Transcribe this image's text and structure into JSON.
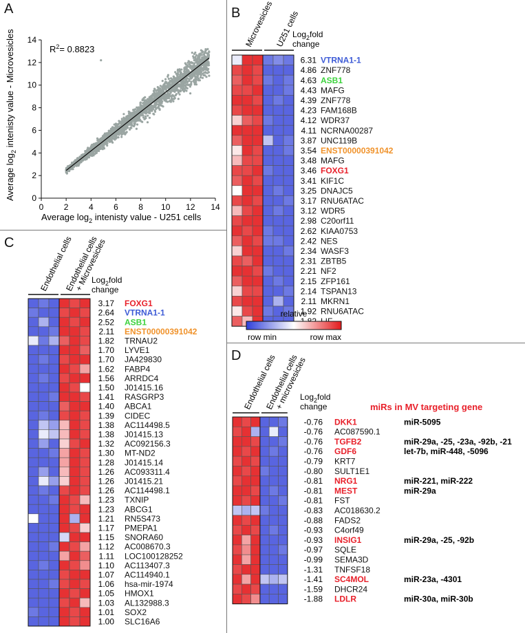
{
  "colors": {
    "red": "#e8202a",
    "blue": "#3d5bd6",
    "green": "#3cd23c",
    "orange": "#f0922a",
    "scatter": "#9aa5a2",
    "black": "#111111"
  },
  "panelA": {
    "letter": "A",
    "xlabel_pre": "Average log",
    "xlabel_sub": "2",
    "xlabel_post": " intenisty value - U251 cells",
    "ylabel_pre": "Average log",
    "ylabel_sub": "2",
    "ylabel_post": " intenisty value - Microvesicles",
    "r2": "R",
    "r2_sup": "2",
    "r2_val": "= 0.8823",
    "chart_data": {
      "type": "scatter",
      "xlim": [
        0,
        14
      ],
      "ylim": [
        0,
        14
      ],
      "xticks": [
        "0",
        "2",
        "4",
        "6",
        "8",
        "10",
        "12",
        "14"
      ],
      "yticks": [
        "0",
        "2",
        "4",
        "6",
        "8",
        "10",
        "12",
        "14"
      ],
      "fit_line": [
        [
          2.0,
          2.45
        ],
        [
          13.5,
          12.4
        ]
      ],
      "r2": 0.8823
    }
  },
  "panelB": {
    "letter": "B",
    "col1": "Microvesicles",
    "col2": "U251 cells",
    "fc_line1": "Log",
    "fc_sub": "2",
    "fc_line2": "fold",
    "fc_line3": "change",
    "legend_title": "relative",
    "legend_min": "row min",
    "legend_max": "row max",
    "rows": [
      {
        "fc": "6.31",
        "gene": "VTRNA1-1",
        "color": "blue",
        "cells": [
          0.45,
          0.95,
          0.95,
          0.15,
          0.2,
          0.15
        ]
      },
      {
        "fc": "4.86",
        "gene": "ZNF778",
        "color": "black",
        "cells": [
          0.9,
          0.95,
          0.9,
          0.1,
          0.1,
          0.1
        ]
      },
      {
        "fc": "4.63",
        "gene": "ASB1",
        "color": "green",
        "cells": [
          0.85,
          0.95,
          0.9,
          0.15,
          0.1,
          0.15
        ]
      },
      {
        "fc": "4.43",
        "gene": "MAFG",
        "color": "black",
        "cells": [
          0.9,
          0.9,
          0.95,
          0.1,
          0.1,
          0.15
        ]
      },
      {
        "fc": "4.39",
        "gene": "ZNF778",
        "color": "black",
        "cells": [
          0.95,
          0.95,
          0.9,
          0.1,
          0.15,
          0.1
        ]
      },
      {
        "fc": "4.23",
        "gene": "FAM168B",
        "color": "black",
        "cells": [
          0.9,
          0.95,
          0.95,
          0.1,
          0.1,
          0.1
        ]
      },
      {
        "fc": "4.12",
        "gene": "WDR37",
        "color": "black",
        "cells": [
          0.6,
          0.85,
          0.9,
          0.15,
          0.1,
          0.1
        ]
      },
      {
        "fc": "4.11",
        "gene": "NCRNA00287",
        "color": "black",
        "cells": [
          0.95,
          0.95,
          0.95,
          0.1,
          0.1,
          0.1
        ]
      },
      {
        "fc": "3.87",
        "gene": "UNC119B",
        "color": "black",
        "cells": [
          0.85,
          0.95,
          0.95,
          0.35,
          0.1,
          0.15
        ]
      },
      {
        "fc": "3.54",
        "gene": "ENST00000391042",
        "color": "orange",
        "cells": [
          0.55,
          0.95,
          0.9,
          0.1,
          0.1,
          0.15
        ]
      },
      {
        "fc": "3.48",
        "gene": "MAFG",
        "color": "black",
        "cells": [
          0.65,
          0.9,
          0.9,
          0.1,
          0.1,
          0.1
        ]
      },
      {
        "fc": "3.46",
        "gene": "FOXG1",
        "color": "red",
        "cells": [
          0.9,
          0.9,
          0.95,
          0.15,
          0.1,
          0.1
        ]
      },
      {
        "fc": "3.41",
        "gene": "KIF1C",
        "color": "black",
        "cells": [
          0.85,
          0.95,
          0.9,
          0.1,
          0.1,
          0.1
        ]
      },
      {
        "fc": "3.25",
        "gene": "DNAJC5",
        "color": "black",
        "cells": [
          0.5,
          0.95,
          0.95,
          0.1,
          0.15,
          0.1
        ]
      },
      {
        "fc": "3.17",
        "gene": "RNU6ATAC",
        "color": "black",
        "cells": [
          0.9,
          0.95,
          0.9,
          0.1,
          0.1,
          0.15
        ]
      },
      {
        "fc": "3.12",
        "gene": "WDR5",
        "color": "black",
        "cells": [
          0.65,
          0.9,
          0.95,
          0.1,
          0.15,
          0.1
        ]
      },
      {
        "fc": "2.98",
        "gene": "C20orf11",
        "color": "black",
        "cells": [
          0.9,
          0.95,
          0.95,
          0.1,
          0.1,
          0.1
        ]
      },
      {
        "fc": "2.62",
        "gene": "KIAA0753",
        "color": "black",
        "cells": [
          0.95,
          0.9,
          0.95,
          0.15,
          0.1,
          0.1
        ]
      },
      {
        "fc": "2.42",
        "gene": "NES",
        "color": "black",
        "cells": [
          0.85,
          0.95,
          0.9,
          0.15,
          0.15,
          0.1
        ]
      },
      {
        "fc": "2.34",
        "gene": "WASF3",
        "color": "black",
        "cells": [
          0.6,
          0.95,
          0.95,
          0.1,
          0.1,
          0.15
        ]
      },
      {
        "fc": "2.31",
        "gene": "ZBTB5",
        "color": "black",
        "cells": [
          0.9,
          0.85,
          0.95,
          0.1,
          0.1,
          0.1
        ]
      },
      {
        "fc": "2.21",
        "gene": "NF2",
        "color": "black",
        "cells": [
          0.95,
          0.95,
          0.9,
          0.15,
          0.1,
          0.1
        ]
      },
      {
        "fc": "2.15",
        "gene": "ZFP161",
        "color": "black",
        "cells": [
          0.85,
          0.95,
          0.95,
          0.1,
          0.15,
          0.1
        ]
      },
      {
        "fc": "2.14",
        "gene": "TSPAN13",
        "color": "black",
        "cells": [
          0.6,
          0.9,
          0.9,
          0.1,
          0.1,
          0.15
        ]
      },
      {
        "fc": "2.11",
        "gene": "MKRN1",
        "color": "black",
        "cells": [
          0.9,
          0.95,
          0.95,
          0.1,
          0.3,
          0.1
        ]
      },
      {
        "fc": "1.92",
        "gene": "RNU6ATAC",
        "color": "black",
        "cells": [
          0.55,
          0.9,
          0.95,
          0.15,
          0.1,
          0.15
        ]
      },
      {
        "fc": "1.82",
        "gene": "LIF",
        "color": "black",
        "cells": [
          0.85,
          0.65,
          0.95,
          0.1,
          0.1,
          0.1
        ]
      }
    ]
  },
  "panelC": {
    "letter": "C",
    "col1": "Endothelial cells",
    "col2a": "Endothelial cells",
    "col2b": "+ Microvesicles",
    "fc_line1": "Log",
    "fc_sub": "2",
    "fc_line2": "fold",
    "fc_line3": "change",
    "rows": [
      {
        "fc": "3.17",
        "gene": "FOXG1",
        "color": "red",
        "cells": [
          0.1,
          0.15,
          0.1,
          0.95,
          0.9,
          0.95
        ]
      },
      {
        "fc": "2.64",
        "gene": "VTRNA1-1",
        "color": "blue",
        "cells": [
          0.15,
          0.1,
          0.1,
          0.9,
          0.95,
          0.9
        ]
      },
      {
        "fc": "2.52",
        "gene": "ASB1",
        "color": "green",
        "cells": [
          0.1,
          0.3,
          0.1,
          0.95,
          0.9,
          0.95
        ]
      },
      {
        "fc": "2.11",
        "gene": "ENST00000391042",
        "color": "orange",
        "cells": [
          0.1,
          0.1,
          0.15,
          0.95,
          0.95,
          0.9
        ]
      },
      {
        "fc": "1.82",
        "gene": "TRNAU2",
        "color": "black",
        "cells": [
          0.45,
          0.15,
          0.3,
          0.85,
          0.95,
          0.9
        ]
      },
      {
        "fc": "1.70",
        "gene": "LYVE1",
        "color": "black",
        "cells": [
          0.1,
          0.1,
          0.1,
          0.95,
          0.95,
          0.85
        ]
      },
      {
        "fc": "1.70",
        "gene": "JA429830",
        "color": "black",
        "cells": [
          0.1,
          0.15,
          0.1,
          0.9,
          0.95,
          0.95
        ]
      },
      {
        "fc": "1.62",
        "gene": "FABP4",
        "color": "black",
        "cells": [
          0.1,
          0.1,
          0.1,
          0.95,
          0.9,
          0.7
        ]
      },
      {
        "fc": "1.56",
        "gene": "ARRDC4",
        "color": "black",
        "cells": [
          0.1,
          0.15,
          0.1,
          0.9,
          0.95,
          0.95
        ]
      },
      {
        "fc": "1.50",
        "gene": "J01415.16",
        "color": "black",
        "cells": [
          0.1,
          0.1,
          0.1,
          0.95,
          0.9,
          0.5
        ]
      },
      {
        "fc": "1.41",
        "gene": "RASGRP3",
        "color": "black",
        "cells": [
          0.1,
          0.1,
          0.15,
          0.95,
          0.95,
          0.9
        ]
      },
      {
        "fc": "1.40",
        "gene": "ABCA1",
        "color": "black",
        "cells": [
          0.1,
          0.1,
          0.1,
          0.85,
          0.95,
          0.95
        ]
      },
      {
        "fc": "1.39",
        "gene": "CIDEC",
        "color": "black",
        "cells": [
          0.1,
          0.15,
          0.1,
          0.9,
          0.95,
          0.9
        ]
      },
      {
        "fc": "1.38",
        "gene": "AC114498.5",
        "color": "black",
        "cells": [
          0.1,
          0.35,
          0.25,
          0.65,
          0.95,
          0.9
        ]
      },
      {
        "fc": "1.38",
        "gene": "J01415.13",
        "color": "black",
        "cells": [
          0.1,
          0.45,
          0.35,
          0.65,
          0.95,
          0.9
        ]
      },
      {
        "fc": "1.32",
        "gene": "AC092156.3",
        "color": "black",
        "cells": [
          0.1,
          0.25,
          0.1,
          0.6,
          0.9,
          0.95
        ]
      },
      {
        "fc": "1.30",
        "gene": "MT-ND2",
        "color": "black",
        "cells": [
          0.1,
          0.1,
          0.15,
          0.7,
          0.95,
          0.9
        ]
      },
      {
        "fc": "1.28",
        "gene": "J01415.14",
        "color": "black",
        "cells": [
          0.1,
          0.1,
          0.1,
          0.7,
          0.95,
          0.9
        ]
      },
      {
        "fc": "1.26",
        "gene": "AC093311.4",
        "color": "black",
        "cells": [
          0.1,
          0.25,
          0.1,
          0.65,
          0.95,
          0.9
        ]
      },
      {
        "fc": "1.26",
        "gene": "J01415.21",
        "color": "black",
        "cells": [
          0.1,
          0.45,
          0.25,
          0.6,
          0.95,
          0.9
        ]
      },
      {
        "fc": "1.26",
        "gene": "AC114498.1",
        "color": "black",
        "cells": [
          0.1,
          0.15,
          0.1,
          0.9,
          0.95,
          0.9
        ]
      },
      {
        "fc": "1.23",
        "gene": "TXNIP",
        "color": "black",
        "cells": [
          0.1,
          0.1,
          0.15,
          0.95,
          0.9,
          0.65
        ]
      },
      {
        "fc": "1.23",
        "gene": "ABCG1",
        "color": "black",
        "cells": [
          0.1,
          0.1,
          0.1,
          0.95,
          0.9,
          0.95
        ]
      },
      {
        "fc": "1.21",
        "gene": "RN5S473",
        "color": "black",
        "cells": [
          0.5,
          0.1,
          0.1,
          0.95,
          0.3,
          0.95
        ]
      },
      {
        "fc": "1.17",
        "gene": "PMEPA1",
        "color": "black",
        "cells": [
          0.1,
          0.1,
          0.1,
          0.95,
          0.9,
          0.6
        ]
      },
      {
        "fc": "1.15",
        "gene": "SNORA60",
        "color": "black",
        "cells": [
          0.1,
          0.1,
          0.1,
          0.4,
          0.95,
          0.95
        ]
      },
      {
        "fc": "1.12",
        "gene": "AC008670.3",
        "color": "black",
        "cells": [
          0.1,
          0.1,
          0.15,
          0.95,
          0.9,
          0.7
        ]
      },
      {
        "fc": "1.11",
        "gene": "LOC100128252",
        "color": "black",
        "cells": [
          0.1,
          0.1,
          0.1,
          0.7,
          0.95,
          0.85
        ]
      },
      {
        "fc": "1.10",
        "gene": "AC113407.3",
        "color": "black",
        "cells": [
          0.1,
          0.15,
          0.1,
          0.95,
          0.9,
          0.75
        ]
      },
      {
        "fc": "1.07",
        "gene": "AC114940.1",
        "color": "black",
        "cells": [
          0.1,
          0.1,
          0.1,
          0.9,
          0.95,
          0.95
        ]
      },
      {
        "fc": "1.06",
        "gene": "hsa-mir-1974",
        "color": "black",
        "cells": [
          0.1,
          0.1,
          0.15,
          0.9,
          0.95,
          0.9
        ]
      },
      {
        "fc": "1.05",
        "gene": "HMOX1",
        "color": "black",
        "cells": [
          0.1,
          0.1,
          0.1,
          0.95,
          0.9,
          0.95
        ]
      },
      {
        "fc": "1.03",
        "gene": "AL132988.3",
        "color": "black",
        "cells": [
          0.1,
          0.1,
          0.1,
          0.9,
          0.95,
          0.65
        ]
      },
      {
        "fc": "1.01",
        "gene": "SOX2",
        "color": "black",
        "cells": [
          0.15,
          0.1,
          0.1,
          0.95,
          0.9,
          0.95
        ]
      },
      {
        "fc": "1.00",
        "gene": "SLC16A6",
        "color": "black",
        "cells": [
          0.1,
          0.1,
          0.1,
          0.95,
          0.9,
          0.95
        ]
      }
    ]
  },
  "panelD": {
    "letter": "D",
    "col1": "Endothelial cells",
    "col2a": "Endothelial cells",
    "col2b": "+ microvesicles",
    "fc_line1": "Log",
    "fc_sub": "2",
    "fc_line2": "fold",
    "fc_line3": "change",
    "mirs_header": "miRs in MV targeting gene",
    "rows": [
      {
        "fc": "-0.76",
        "gene": "DKK1",
        "red": true,
        "mir": "miR-5095",
        "cells": [
          0.95,
          0.9,
          0.95,
          0.1,
          0.1,
          0.15
        ]
      },
      {
        "fc": "-0.76",
        "gene": "AC087590.1",
        "red": false,
        "mir": "",
        "cells": [
          0.9,
          0.95,
          0.3,
          0.1,
          0.45,
          0.1
        ]
      },
      {
        "fc": "-0.76",
        "gene": "TGFB2",
        "red": true,
        "mir": "miR-29a, -25, -23a, -92b, -21",
        "cells": [
          0.95,
          0.95,
          0.9,
          0.1,
          0.1,
          0.15
        ]
      },
      {
        "fc": "-0.76",
        "gene": "GDF6",
        "red": true,
        "mir": "let-7b, miR-448, -5096",
        "cells": [
          0.95,
          0.9,
          0.95,
          0.1,
          0.15,
          0.1
        ]
      },
      {
        "fc": "-0.79",
        "gene": "KRT7",
        "red": false,
        "mir": "",
        "cells": [
          0.9,
          0.95,
          0.9,
          0.1,
          0.1,
          0.1
        ]
      },
      {
        "fc": "-0.80",
        "gene": "SULT1E1",
        "red": false,
        "mir": "",
        "cells": [
          0.95,
          0.9,
          0.95,
          0.15,
          0.1,
          0.1
        ]
      },
      {
        "fc": "-0.81",
        "gene": "NRG1",
        "red": true,
        "mir": "miR-221, miR-222",
        "cells": [
          0.9,
          0.95,
          0.95,
          0.1,
          0.1,
          0.1
        ]
      },
      {
        "fc": "-0.81",
        "gene": "MEST",
        "red": true,
        "mir": "miR-29a",
        "cells": [
          0.95,
          0.95,
          0.9,
          0.1,
          0.15,
          0.1
        ]
      },
      {
        "fc": "-0.81",
        "gene": "FST",
        "red": false,
        "mir": "",
        "cells": [
          0.95,
          0.9,
          0.95,
          0.1,
          0.1,
          0.15
        ]
      },
      {
        "fc": "-0.83",
        "gene": "AC018630.2",
        "red": false,
        "mir": "",
        "cells": [
          0.35,
          0.3,
          0.35,
          0.15,
          0.1,
          0.1
        ]
      },
      {
        "fc": "-0.88",
        "gene": "FADS2",
        "red": false,
        "mir": "",
        "cells": [
          0.95,
          0.9,
          0.95,
          0.1,
          0.1,
          0.1
        ]
      },
      {
        "fc": "-0.93",
        "gene": "C4orf49",
        "red": false,
        "mir": "",
        "cells": [
          0.9,
          0.95,
          0.9,
          0.1,
          0.15,
          0.1
        ]
      },
      {
        "fc": "-0.93",
        "gene": "INSIG1",
        "red": true,
        "mir": "miR-29a, -25, -92b",
        "cells": [
          0.95,
          0.7,
          0.95,
          0.1,
          0.1,
          0.1
        ]
      },
      {
        "fc": "-0.97",
        "gene": "SQLE",
        "red": false,
        "mir": "",
        "cells": [
          0.9,
          0.75,
          0.95,
          0.1,
          0.1,
          0.15
        ]
      },
      {
        "fc": "-0.99",
        "gene": "SEMA3D",
        "red": false,
        "mir": "",
        "cells": [
          0.95,
          0.7,
          0.95,
          0.1,
          0.1,
          0.1
        ]
      },
      {
        "fc": "-1.31",
        "gene": "TNFSF18",
        "red": false,
        "mir": "",
        "cells": [
          0.9,
          0.95,
          0.95,
          0.1,
          0.1,
          0.1
        ]
      },
      {
        "fc": "-1.41",
        "gene": "SC4MOL",
        "red": true,
        "mir": "miR-23a, -4301",
        "cells": [
          0.95,
          0.7,
          0.95,
          0.35,
          0.3,
          0.35
        ]
      },
      {
        "fc": "-1.59",
        "gene": "DHCR24",
        "red": false,
        "mir": "",
        "cells": [
          0.9,
          0.95,
          0.9,
          0.1,
          0.1,
          0.1
        ]
      },
      {
        "fc": "-1.88",
        "gene": "LDLR",
        "red": true,
        "mir": "miR-30a, miR-30b",
        "cells": [
          0.95,
          0.9,
          0.75,
          0.1,
          0.1,
          0.1
        ]
      }
    ]
  }
}
